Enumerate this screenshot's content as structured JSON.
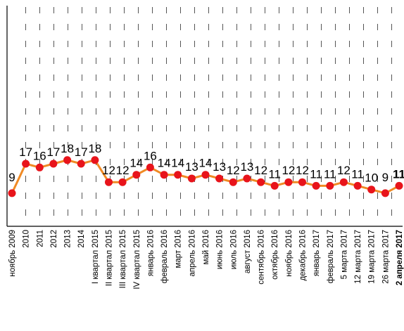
{
  "chart_data": {
    "type": "line",
    "categories": [
      "ноябрь 2009",
      "2010",
      "2011",
      "2012",
      "2013",
      "2014",
      "I квартал 2015",
      "II квартал 2015",
      "III квартал 2015",
      "IV квартал 2015",
      "январь 2016",
      "февраль 2016",
      "март 2016",
      "апрель 2016",
      "май 2016",
      "июнь 2016",
      "июль 2016",
      "август 2016",
      "сентябрь 2016",
      "октябрь 2016",
      "ноябрь 2016",
      "декабрь 2016",
      "январь 2017",
      "февраль 2017",
      "5 марта 2017",
      "12 марта 2017",
      "19 марта 2017",
      "26 марта 2017",
      "2 апреля 2017"
    ],
    "values": [
      9,
      17,
      16,
      17,
      18,
      17,
      18,
      12,
      12,
      14,
      16,
      14,
      14,
      13,
      14,
      13,
      12,
      13,
      12,
      11,
      12,
      12,
      11,
      11,
      12,
      11,
      10,
      9,
      11
    ],
    "labels": [
      "9",
      "17",
      "16",
      "17",
      "18",
      "17",
      "18",
      "12",
      "12",
      "14",
      "16",
      "14",
      "14",
      "13",
      "14",
      "13",
      "12",
      "13",
      "12",
      "11",
      "12",
      "12",
      "11",
      "11",
      "12",
      "11",
      "10",
      "9",
      "11"
    ],
    "highlight_last": true,
    "ylim": [
      0,
      60
    ],
    "grid": "dashed-vertical",
    "colors": {
      "line": "#f08a24",
      "marker": "#e8141b",
      "grid": "#555555",
      "axis": "#000000"
    }
  }
}
